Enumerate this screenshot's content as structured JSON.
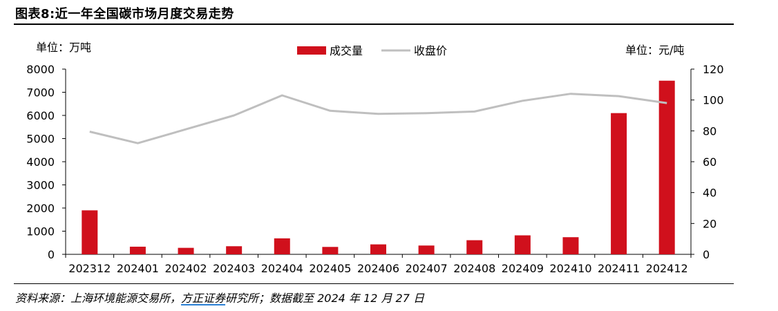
{
  "figure": {
    "title": "图表8:近一年全国碳市场月度交易走势",
    "source_prefix": "资料来源：上海环境能源交易所，",
    "source_highlight": "方正证券",
    "source_suffix": "研究所；数据截至 2024 年 12 月 27 日"
  },
  "colors": {
    "bar": "#d0101c",
    "line": "#bfbfbf",
    "axis": "#000000"
  },
  "chart_data": {
    "type": "bar",
    "categories": [
      "202312",
      "202401",
      "202402",
      "202403",
      "202404",
      "202405",
      "202406",
      "202407",
      "202408",
      "202409",
      "202410",
      "202411",
      "202412"
    ],
    "series": [
      {
        "name": "成交量",
        "type": "bar",
        "axis": "left",
        "values": [
          1900,
          330,
          280,
          350,
          690,
          320,
          430,
          380,
          610,
          820,
          740,
          6100,
          7500
        ]
      },
      {
        "name": "收盘价",
        "type": "line",
        "axis": "right",
        "values": [
          79.5,
          72,
          81,
          90,
          103,
          93,
          91,
          91.5,
          92.5,
          99.5,
          104,
          102.5,
          98
        ]
      }
    ],
    "y_left": {
      "label": "单位：万吨",
      "ylim": [
        0,
        8000
      ],
      "ticks": [
        0,
        1000,
        2000,
        3000,
        4000,
        5000,
        6000,
        7000,
        8000
      ]
    },
    "y_right": {
      "label": "单位：元/吨",
      "ylim": [
        0,
        120
      ],
      "ticks": [
        0,
        20,
        40,
        60,
        80,
        100,
        120
      ]
    },
    "legend": {
      "position": "top-center",
      "items": [
        {
          "label": "成交量",
          "kind": "bar"
        },
        {
          "label": "收盘价",
          "kind": "line"
        }
      ]
    },
    "grid": false
  }
}
